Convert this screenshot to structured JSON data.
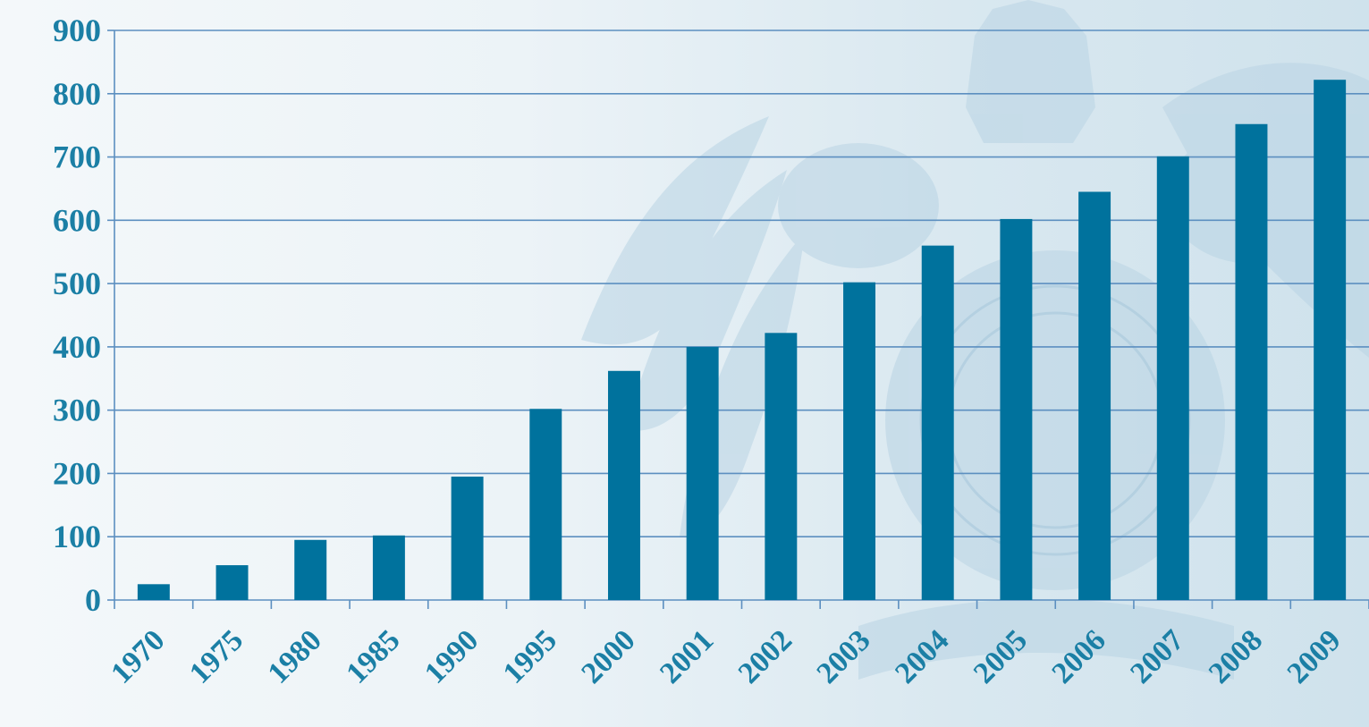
{
  "chart_data": {
    "type": "bar",
    "title": "",
    "xlabel": "",
    "ylabel": "",
    "categories": [
      "1970",
      "1975",
      "1980",
      "1985",
      "1990",
      "1995",
      "2000",
      "2001",
      "2002",
      "2003",
      "2004",
      "2005",
      "2006",
      "2007",
      "2008",
      "2009"
    ],
    "values": [
      25,
      55,
      95,
      102,
      195,
      302,
      362,
      400,
      422,
      502,
      560,
      602,
      645,
      701,
      752,
      822
    ],
    "ylim": [
      0,
      900
    ],
    "yticks": [
      "0",
      "100",
      "200",
      "300",
      "400",
      "500",
      "600",
      "700",
      "800",
      "900"
    ],
    "grid": true,
    "legend": "none",
    "bar_color": "#00729d",
    "grid_color": "#5c8fc0",
    "label_color": "#1b7fa5",
    "background_watermark": "crest-with-crown-and-birds"
  }
}
